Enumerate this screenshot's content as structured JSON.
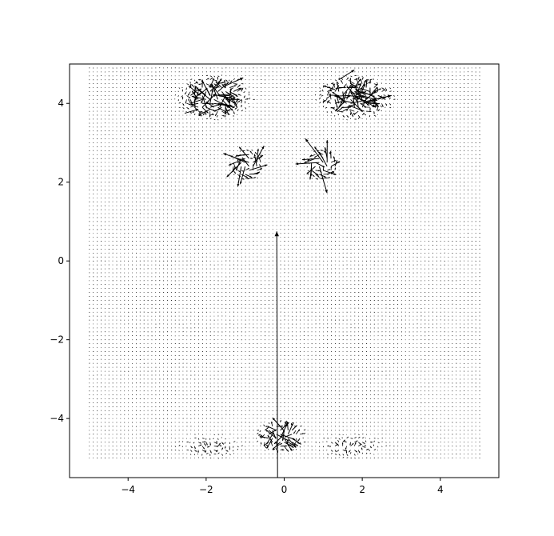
{
  "chart_data": {
    "type": "quiver",
    "title": "",
    "xlabel": "",
    "ylabel": "",
    "xlim": [
      -5.5,
      5.5
    ],
    "ylim": [
      -5.5,
      5.0
    ],
    "xticks": [
      -4,
      -2,
      0,
      2,
      4
    ],
    "yticks": [
      -4,
      -2,
      0,
      2,
      4
    ],
    "xtick_labels": [
      "−4",
      "−2",
      "0",
      "2",
      "4"
    ],
    "ytick_labels": [
      "−4",
      "−2",
      "0",
      "2",
      "4"
    ],
    "grid": false,
    "field": {
      "domain_x": [
        -5,
        5
      ],
      "domain_y": [
        -5,
        5
      ],
      "grid_step": 0.1,
      "background_arrow": "tiny uniform vectors",
      "vortex_centers": [
        {
          "x": -0.95,
          "y": 2.45
        },
        {
          "x": 0.95,
          "y": 2.45
        }
      ]
    },
    "notable_vectors": [
      {
        "x": -0.17,
        "y": -5.5,
        "u": -0.02,
        "v": 6.25
      },
      {
        "x": -0.1,
        "y": -4.2,
        "u": -0.2,
        "v": 0.22
      },
      {
        "x": -2.15,
        "y": 4.2,
        "u": -0.3,
        "v": 0.25
      },
      {
        "x": -2.1,
        "y": 3.9,
        "u": 0.35,
        "v": 0.35
      },
      {
        "x": -1.5,
        "y": 4.45,
        "u": 0.45,
        "v": 0.2
      },
      {
        "x": -2.55,
        "y": 3.75,
        "u": 0.35,
        "v": 0.1
      },
      {
        "x": -1.9,
        "y": 3.85,
        "u": -0.3,
        "v": -0.15
      },
      {
        "x": 1.4,
        "y": 4.6,
        "u": 0.4,
        "v": 0.25
      },
      {
        "x": 1.8,
        "y": 4.2,
        "u": 0.55,
        "v": -0.3
      },
      {
        "x": 2.1,
        "y": 4.05,
        "u": 0.65,
        "v": 0.15
      },
      {
        "x": 1.6,
        "y": 4.45,
        "u": 0.3,
        "v": -0.35
      },
      {
        "x": 2.05,
        "y": 3.8,
        "u": -0.4,
        "v": 0.15
      },
      {
        "x": 1.3,
        "y": 4.35,
        "u": -0.3,
        "v": 0.1
      }
    ],
    "facial_clusters": [
      {
        "cx": -1.8,
        "cy": 4.15,
        "rx": 0.8,
        "ry": 0.45,
        "strength": 0.45
      },
      {
        "cx": 1.8,
        "cy": 4.15,
        "rx": 0.8,
        "ry": 0.45,
        "strength": 0.45
      },
      {
        "cx": -0.95,
        "cy": 2.45,
        "rx": 0.35,
        "ry": 0.22,
        "strength": 0.5
      },
      {
        "cx": 0.95,
        "cy": 2.45,
        "rx": 0.35,
        "ry": 0.22,
        "strength": 0.5
      },
      {
        "cx": -0.1,
        "cy": -4.45,
        "rx": 0.55,
        "ry": 0.35,
        "strength": 0.4
      },
      {
        "cx": -1.9,
        "cy": -4.7,
        "rx": 0.9,
        "ry": 0.3,
        "strength": 0.1
      },
      {
        "cx": 1.7,
        "cy": -4.7,
        "rx": 0.9,
        "ry": 0.3,
        "strength": 0.1
      }
    ]
  }
}
